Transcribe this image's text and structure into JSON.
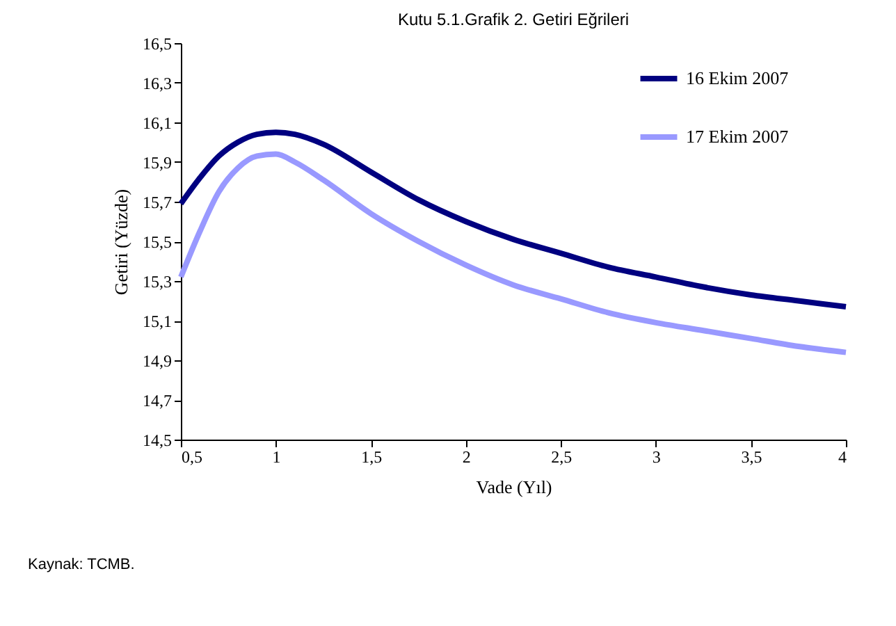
{
  "chart_data": {
    "type": "line",
    "title": "Kutu 5.1.Grafik 2. Getiri Eğrileri",
    "xlabel": "Vade (Yıl)",
    "ylabel": "Getiri (Yüzde)",
    "x": [
      0.5,
      0.6,
      0.7,
      0.8,
      0.9,
      1.0,
      1.1,
      1.25,
      1.5,
      1.75,
      2.0,
      2.25,
      2.5,
      2.75,
      3.0,
      3.25,
      3.5,
      3.75,
      4.0
    ],
    "series": [
      {
        "name": "16 Ekim 2007",
        "color": "#000080",
        "values": [
          15.69,
          15.82,
          15.93,
          16.0,
          16.04,
          16.05,
          16.04,
          15.99,
          15.85,
          15.71,
          15.6,
          15.51,
          15.44,
          15.37,
          15.32,
          15.27,
          15.23,
          15.2,
          15.17
        ]
      },
      {
        "name": "17 Ekim 2007",
        "color": "#9999ff",
        "values": [
          15.32,
          15.55,
          15.75,
          15.87,
          15.93,
          15.94,
          15.9,
          15.81,
          15.64,
          15.5,
          15.38,
          15.28,
          15.21,
          15.14,
          15.09,
          15.05,
          15.01,
          14.97,
          14.94
        ]
      }
    ],
    "xlim": [
      0.5,
      4
    ],
    "xticks": [
      {
        "value": 0.5,
        "label": "0,5"
      },
      1,
      {
        "value": 1.5,
        "label": "1,5"
      },
      2,
      {
        "value": 2.5,
        "label": "2,5"
      },
      3,
      {
        "value": 3.5,
        "label": "3,5"
      },
      4
    ],
    "ylim": [
      14.5,
      16.5
    ],
    "yticks": [
      {
        "value": 14.5,
        "label": "14,5"
      },
      {
        "value": 14.7,
        "label": "14,7"
      },
      {
        "value": 14.9,
        "label": "14,9"
      },
      {
        "value": 15.1,
        "label": "15,1"
      },
      {
        "value": 15.3,
        "label": "15,3"
      },
      {
        "value": 15.5,
        "label": "15,5"
      },
      {
        "value": 15.7,
        "label": "15,7"
      },
      {
        "value": 15.9,
        "label": "15,9"
      },
      {
        "value": 16.1,
        "label": "16,1"
      },
      {
        "value": 16.3,
        "label": "16,3"
      },
      {
        "value": 16.5,
        "label": "16,5"
      }
    ],
    "grid": false,
    "legend": "top right",
    "marker": "none",
    "line_style": "solid",
    "annotations": [
      "Kaynak: TCMB."
    ]
  }
}
